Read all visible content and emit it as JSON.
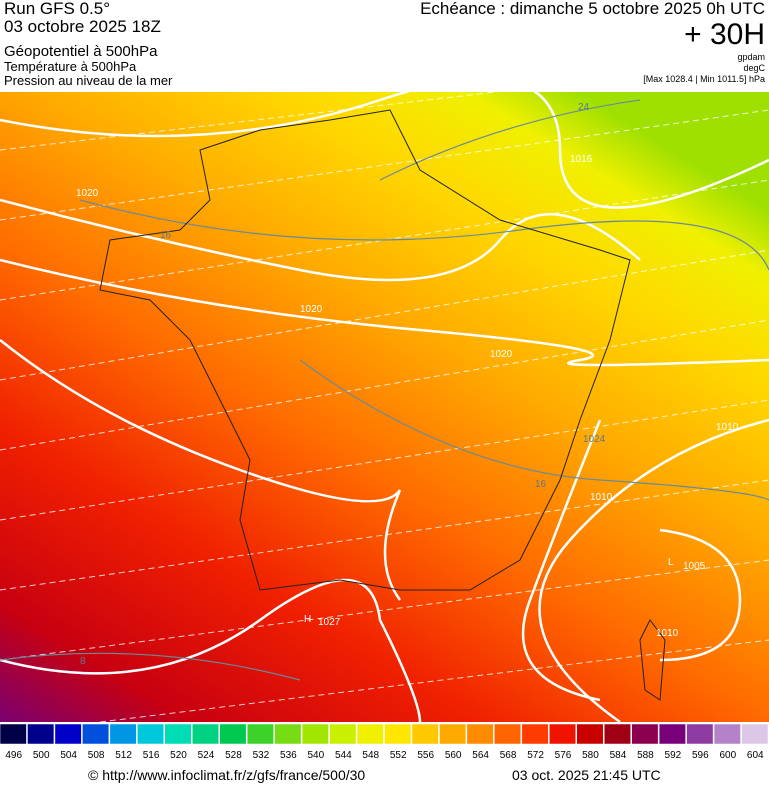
{
  "header": {
    "run": "Run GFS 0.5°",
    "date": "03 octobre 2025 18Z",
    "title": "Géopotentiel à 500hPa",
    "subtitle1": "Température à 500hPa",
    "subtitle2": "Pression au niveau de la mer",
    "echeance": "Echéance : dimanche 5 octobre 2025 0h UTC",
    "lead": "+ 30H",
    "unit1": "gpdam",
    "unit2": "degC",
    "range": "[Max 1028.4 | Min 1011.5] hPa"
  },
  "map": {
    "labels": [
      "24",
      "1016",
      "1020",
      "16",
      "1020",
      "1020",
      "1024",
      "16",
      "1010",
      "1010",
      "1005",
      "1027",
      "1010",
      "8",
      "H",
      "L"
    ]
  },
  "colorbar": {
    "ticks": [
      496,
      500,
      504,
      508,
      512,
      516,
      520,
      524,
      528,
      532,
      536,
      540,
      544,
      548,
      552,
      556,
      560,
      564,
      568,
      572,
      576,
      580,
      584,
      588,
      592,
      596,
      600,
      604
    ],
    "colors": [
      "#000046",
      "#00008c",
      "#0000c8",
      "#0050dc",
      "#0096e6",
      "#00c8dc",
      "#00dcb4",
      "#00d282",
      "#00c850",
      "#3cd228",
      "#78dc14",
      "#a0e600",
      "#c8f000",
      "#f0f000",
      "#ffe600",
      "#ffc800",
      "#ffaa00",
      "#ff8c00",
      "#ff6400",
      "#ff3c00",
      "#f01400",
      "#c80000",
      "#a00014",
      "#8c0050",
      "#780078",
      "#8c3ca0",
      "#b482c8",
      "#dcc8e6"
    ]
  },
  "footer": {
    "url": "© http://www.infoclimat.fr/z/gfs/france/500/30",
    "timestamp": "03 oct. 2025 21:45 UTC"
  }
}
